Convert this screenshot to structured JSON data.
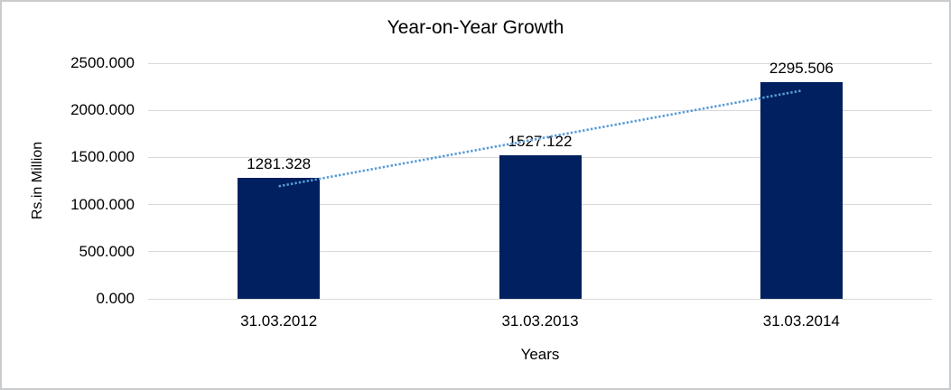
{
  "chart_data": {
    "type": "bar",
    "title": "Year-on-Year Growth",
    "xlabel": "Years",
    "ylabel": "Rs.in Million",
    "categories": [
      "31.03.2012",
      "31.03.2013",
      "31.03.2014"
    ],
    "values": [
      1281.328,
      1527.122,
      2295.506
    ],
    "data_labels": [
      "1281.328",
      "1527.122",
      "2295.506"
    ],
    "ylim": [
      0,
      2500
    ],
    "ytick_step": 500,
    "ytick_labels": [
      "0.000",
      "500.000",
      "1000.000",
      "1500.000",
      "2000.000",
      "2500.000"
    ],
    "grid": true,
    "legend": "none",
    "trendline": {
      "type": "linear",
      "style": "dotted"
    },
    "colors": {
      "bar": "#002060",
      "trendline": "#5b9bd5",
      "gridline": "#d9d9d9",
      "text": "#000000",
      "frame_border": "#c9cbcd",
      "background": "#ffffff"
    }
  }
}
